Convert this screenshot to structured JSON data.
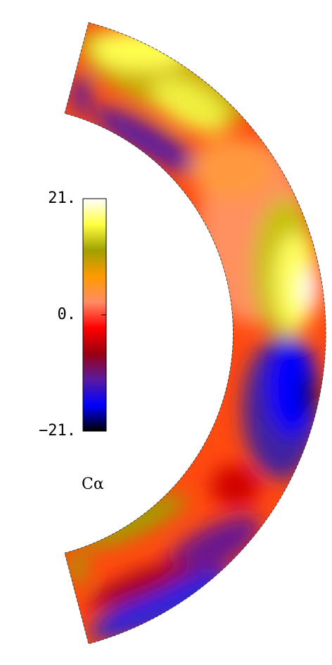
{
  "chart_data": {
    "type": "contour",
    "colorbar": {
      "label": "Cα",
      "lim": [
        -21,
        21
      ],
      "ticks": [
        {
          "value": 21,
          "label": "21."
        },
        {
          "value": 0,
          "label": "0."
        },
        {
          "value": -21,
          "label": "−21."
        }
      ],
      "colorscale": [
        "#000000",
        "#0000ff",
        "#5a1aa0",
        "#9a0010",
        "#ff0000",
        "#ff8c64",
        "#ff9a00",
        "#a0a000",
        "#ffff40",
        "#ffffff"
      ]
    }
  }
}
